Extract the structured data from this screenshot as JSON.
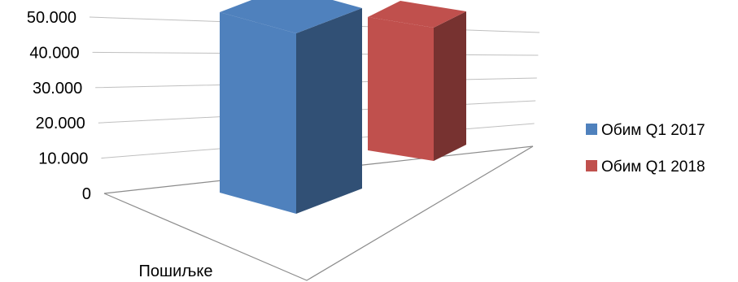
{
  "chart_data": {
    "type": "bar",
    "style": "3d-clustered-column",
    "title": "",
    "xlabel": "",
    "ylabel": "",
    "categories": [
      "Пошиљке"
    ],
    "series": [
      {
        "name": "Обим Q1 2017",
        "values": [
          48500
        ],
        "color": "#4f81bd"
      },
      {
        "name": "Обим Q1 2018",
        "values": [
          38500
        ],
        "color": "#c0504d"
      }
    ],
    "ylim": [
      0,
      50000
    ],
    "y_ticks": [
      {
        "value": 0,
        "label": "0"
      },
      {
        "value": 10000,
        "label": "10.000"
      },
      {
        "value": 20000,
        "label": "20.000"
      },
      {
        "value": 30000,
        "label": "30.000"
      },
      {
        "value": 40000,
        "label": "40.000"
      },
      {
        "value": 50000,
        "label": "50.000"
      }
    ],
    "grid": true,
    "legend": {
      "position": "right"
    }
  }
}
